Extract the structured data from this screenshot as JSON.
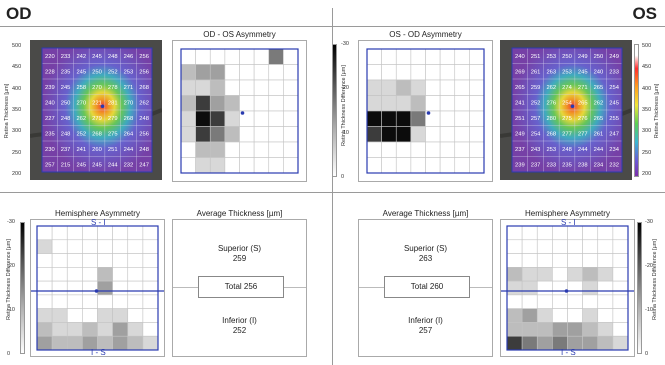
{
  "left": {
    "eye": "OD",
    "asymmetry_title": "OD - OS Asymmetry",
    "hemi_title": "Hemisphere Asymmetry",
    "avg_title": "Average Thickness [µm]",
    "superior_label": "Superior (S)",
    "superior_value": "259",
    "total_label": "Total 256",
    "inferior_label": "Inferior (I)",
    "inferior_value": "252",
    "si_top": "S - I",
    "si_bottom": "I - S",
    "thickness_grid": [
      [
        "220",
        "233",
        "242",
        "245",
        "248",
        "246",
        "256"
      ],
      [
        "228",
        "235",
        "245",
        "250",
        "252",
        "253",
        "256"
      ],
      [
        "239",
        "245",
        "258",
        "270",
        "278",
        "271",
        "268"
      ],
      [
        "240",
        "250",
        "270",
        "221",
        "281",
        "270",
        "262"
      ],
      [
        "227",
        "248",
        "262",
        "279",
        "279",
        "268",
        "248"
      ],
      [
        "235",
        "248",
        "252",
        "268",
        "275",
        "264",
        "256"
      ],
      [
        "230",
        "237",
        "241",
        "260",
        "251",
        "244",
        "248"
      ],
      [
        "257",
        "215",
        "245",
        "245",
        "244",
        "232",
        "247"
      ]
    ],
    "asym_grid": [
      [
        0,
        0,
        0,
        0,
        0,
        0,
        4,
        0
      ],
      [
        2,
        3,
        3,
        0,
        0,
        0,
        0,
        0
      ],
      [
        1,
        1,
        2,
        0,
        0,
        0,
        0,
        0
      ],
      [
        2,
        5,
        3,
        2,
        0,
        0,
        0,
        0
      ],
      [
        1,
        6,
        5,
        1,
        0,
        0,
        0,
        0
      ],
      [
        1,
        5,
        4,
        2,
        0,
        0,
        0,
        0
      ],
      [
        0,
        2,
        2,
        0,
        0,
        0,
        0,
        0
      ],
      [
        0,
        1,
        1,
        0,
        0,
        0,
        0,
        0
      ]
    ],
    "hemi_grid": [
      [
        0,
        0,
        0,
        0,
        0,
        0,
        0,
        0
      ],
      [
        1,
        0,
        0,
        0,
        0,
        0,
        0,
        0
      ],
      [
        0,
        0,
        0,
        0,
        0,
        0,
        0,
        0
      ],
      [
        0,
        0,
        0,
        0,
        2,
        0,
        0,
        0
      ],
      [
        0,
        0,
        0,
        0,
        3,
        0,
        0,
        0
      ],
      [
        0,
        0,
        0,
        0,
        0,
        0,
        0,
        0
      ],
      [
        1,
        1,
        0,
        0,
        1,
        1,
        0,
        0
      ],
      [
        2,
        1,
        1,
        2,
        1,
        3,
        1,
        0
      ],
      [
        3,
        2,
        2,
        3,
        2,
        3,
        2,
        1
      ]
    ]
  },
  "right": {
    "eye": "OS",
    "asymmetry_title": "OS - OD Asymmetry",
    "hemi_title": "Hemisphere Asymmetry",
    "avg_title": "Average Thickness [µm]",
    "superior_label": "Superior (S)",
    "superior_value": "263",
    "total_label": "Total 260",
    "inferior_label": "Inferior (I)",
    "inferior_value": "257",
    "si_top": "S - I",
    "si_bottom": "I - S",
    "thickness_grid": [
      [
        "240",
        "251",
        "253",
        "250",
        "249",
        "250",
        "249"
      ],
      [
        "269",
        "261",
        "263",
        "253",
        "245",
        "240",
        "233"
      ],
      [
        "265",
        "259",
        "262",
        "274",
        "271",
        "265",
        "254"
      ],
      [
        "241",
        "252",
        "276",
        "254",
        "265",
        "262",
        "245"
      ],
      [
        "251",
        "257",
        "280",
        "275",
        "276",
        "265",
        "255"
      ],
      [
        "249",
        "254",
        "268",
        "277",
        "277",
        "261",
        "247"
      ],
      [
        "237",
        "243",
        "253",
        "248",
        "244",
        "244",
        "234"
      ],
      [
        "239",
        "237",
        "233",
        "235",
        "238",
        "234",
        "232"
      ]
    ],
    "asym_grid": [
      [
        0,
        0,
        0,
        0,
        0,
        0,
        0,
        0
      ],
      [
        0,
        0,
        0,
        0,
        0,
        0,
        0,
        0
      ],
      [
        1,
        1,
        2,
        1,
        0,
        0,
        0,
        0
      ],
      [
        1,
        1,
        1,
        2,
        0,
        0,
        0,
        0
      ],
      [
        6,
        6,
        6,
        4,
        0,
        0,
        0,
        0
      ],
      [
        5,
        6,
        6,
        1,
        0,
        0,
        0,
        0
      ],
      [
        0,
        0,
        0,
        0,
        0,
        0,
        0,
        0
      ],
      [
        0,
        0,
        0,
        0,
        0,
        0,
        0,
        0
      ]
    ],
    "hemi_grid": [
      [
        0,
        0,
        0,
        0,
        0,
        0,
        0,
        0
      ],
      [
        0,
        0,
        0,
        0,
        0,
        0,
        0,
        0
      ],
      [
        0,
        0,
        0,
        0,
        0,
        0,
        0,
        0
      ],
      [
        2,
        1,
        1,
        0,
        1,
        2,
        1,
        0
      ],
      [
        1,
        1,
        0,
        0,
        0,
        1,
        0,
        0
      ],
      [
        0,
        0,
        0,
        0,
        0,
        0,
        0,
        0
      ],
      [
        2,
        3,
        1,
        0,
        0,
        1,
        0,
        0
      ],
      [
        2,
        2,
        2,
        3,
        3,
        2,
        1,
        0
      ],
      [
        5,
        4,
        3,
        4,
        3,
        3,
        2,
        1
      ]
    ]
  },
  "thickness_scale": {
    "label": "Retina Thickness [µm]",
    "ticks": [
      "500",
      "450",
      "400",
      "350",
      "300",
      "250",
      "200"
    ]
  },
  "difference_scale": {
    "label": "Retina Thickness Difference [µm]",
    "ticks": [
      "-30",
      "-20",
      "-10",
      "0"
    ]
  },
  "colors": {
    "grid_blue": "#2a3bb0",
    "gray_levels": [
      "#ffffff",
      "#d8d8d8",
      "#bdbdbd",
      "#a0a0a0",
      "#7a7a7a",
      "#3c3c3c",
      "#0c0c0c"
    ]
  }
}
